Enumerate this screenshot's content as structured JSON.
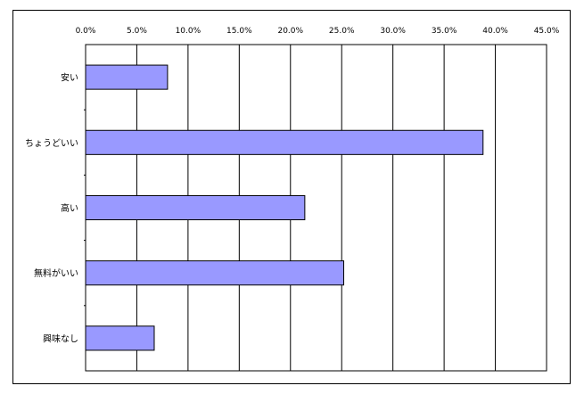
{
  "chart_data": {
    "type": "bar",
    "orientation": "horizontal",
    "categories": [
      "安い",
      "ちょうどいい",
      "高い",
      "無料がいい",
      "興味なし"
    ],
    "values": [
      8.0,
      38.8,
      21.4,
      25.2,
      6.7
    ],
    "xlim": [
      0,
      45
    ],
    "xticks": [
      "0.0%",
      "5.0%",
      "10.0%",
      "15.0%",
      "20.0%",
      "25.0%",
      "30.0%",
      "35.0%",
      "40.0%",
      "45.0%"
    ],
    "x_axis_position": "top",
    "grid": true,
    "legend": "none",
    "bar_color": "#9999ff",
    "bar_border_color": "#000000"
  }
}
